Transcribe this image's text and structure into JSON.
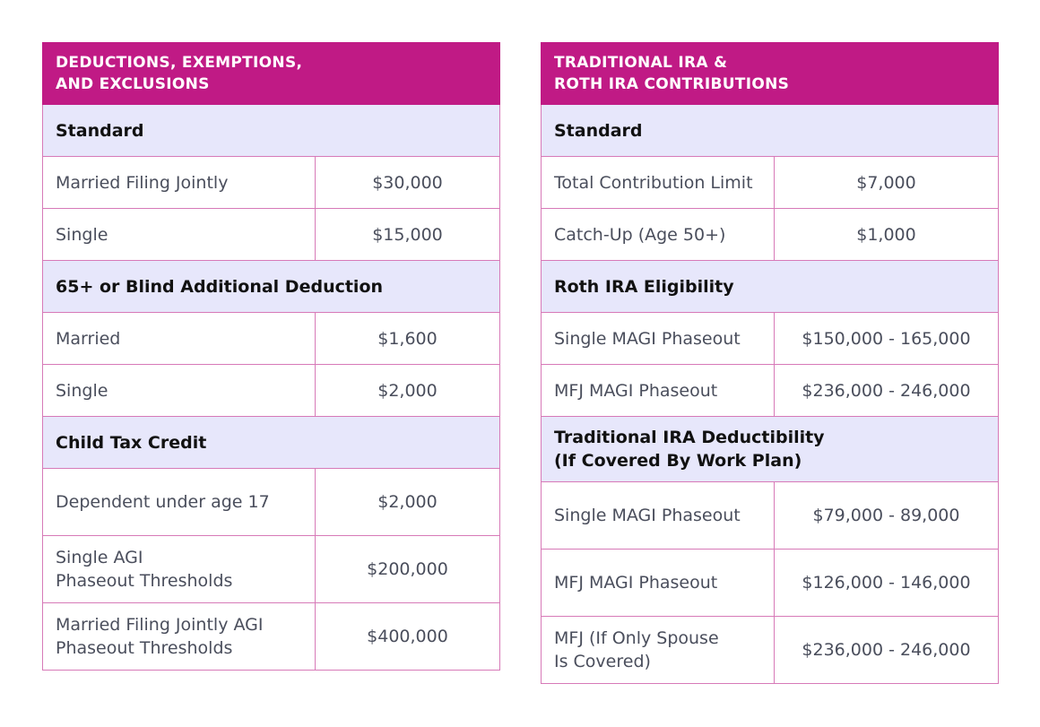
{
  "left_table": {
    "title": "DEDUCTIONS, EXEMPTIONS,\nAND EXCLUSIONS",
    "title_line1": "DEDUCTIONS, EXEMPTIONS,",
    "title_line2": "AND EXCLUSIONS",
    "sections": [
      {
        "heading": "Standard",
        "rows": [
          {
            "label": "Married Filing Jointly",
            "value": "$30,000"
          },
          {
            "label": "Single",
            "value": "$15,000"
          }
        ]
      },
      {
        "heading": "65+ or Blind Additional Deduction",
        "rows": [
          {
            "label": "Married",
            "value": "$1,600"
          },
          {
            "label": "Single",
            "value": "$2,000"
          }
        ]
      },
      {
        "heading": "Child Tax Credit",
        "rows": [
          {
            "label": "Dependent under age 17",
            "value": "$2,000"
          },
          {
            "label": "Single AGI\nPhaseout Thresholds",
            "value": "$200,000"
          },
          {
            "label": "Married Filing Jointly AGI\nPhaseout Thresholds",
            "value": "$400,000"
          }
        ]
      }
    ]
  },
  "right_table": {
    "title_line1": "TRADITIONAL IRA &",
    "title_line2": "ROTH IRA CONTRIBUTIONS",
    "sections": [
      {
        "heading": "Standard",
        "rows": [
          {
            "label": "Total Contribution Limit",
            "value": "$7,000"
          },
          {
            "label": "Catch-Up (Age 50+)",
            "value": "$1,000"
          }
        ]
      },
      {
        "heading": "Roth IRA Eligibility",
        "rows": [
          {
            "label": "Single MAGI Phaseout",
            "value": "$150,000 - 165,000"
          },
          {
            "label": "MFJ MAGI Phaseout",
            "value": "$236,000 - 246,000"
          }
        ]
      },
      {
        "heading": "Traditional IRA Deductibility\n(If Covered By Work Plan)",
        "rows": [
          {
            "label": "Single MAGI Phaseout",
            "value": "$79,000 - 89,000"
          },
          {
            "label": "MFJ MAGI Phaseout",
            "value": "$126,000 - 146,000"
          },
          {
            "label": "MFJ (If Only Spouse\nIs Covered)",
            "value": "$236,000 - 246,000"
          }
        ]
      }
    ]
  },
  "colors": {
    "header": "#c01a85",
    "section": "#e7e7fb",
    "border": "#d77ab8"
  }
}
